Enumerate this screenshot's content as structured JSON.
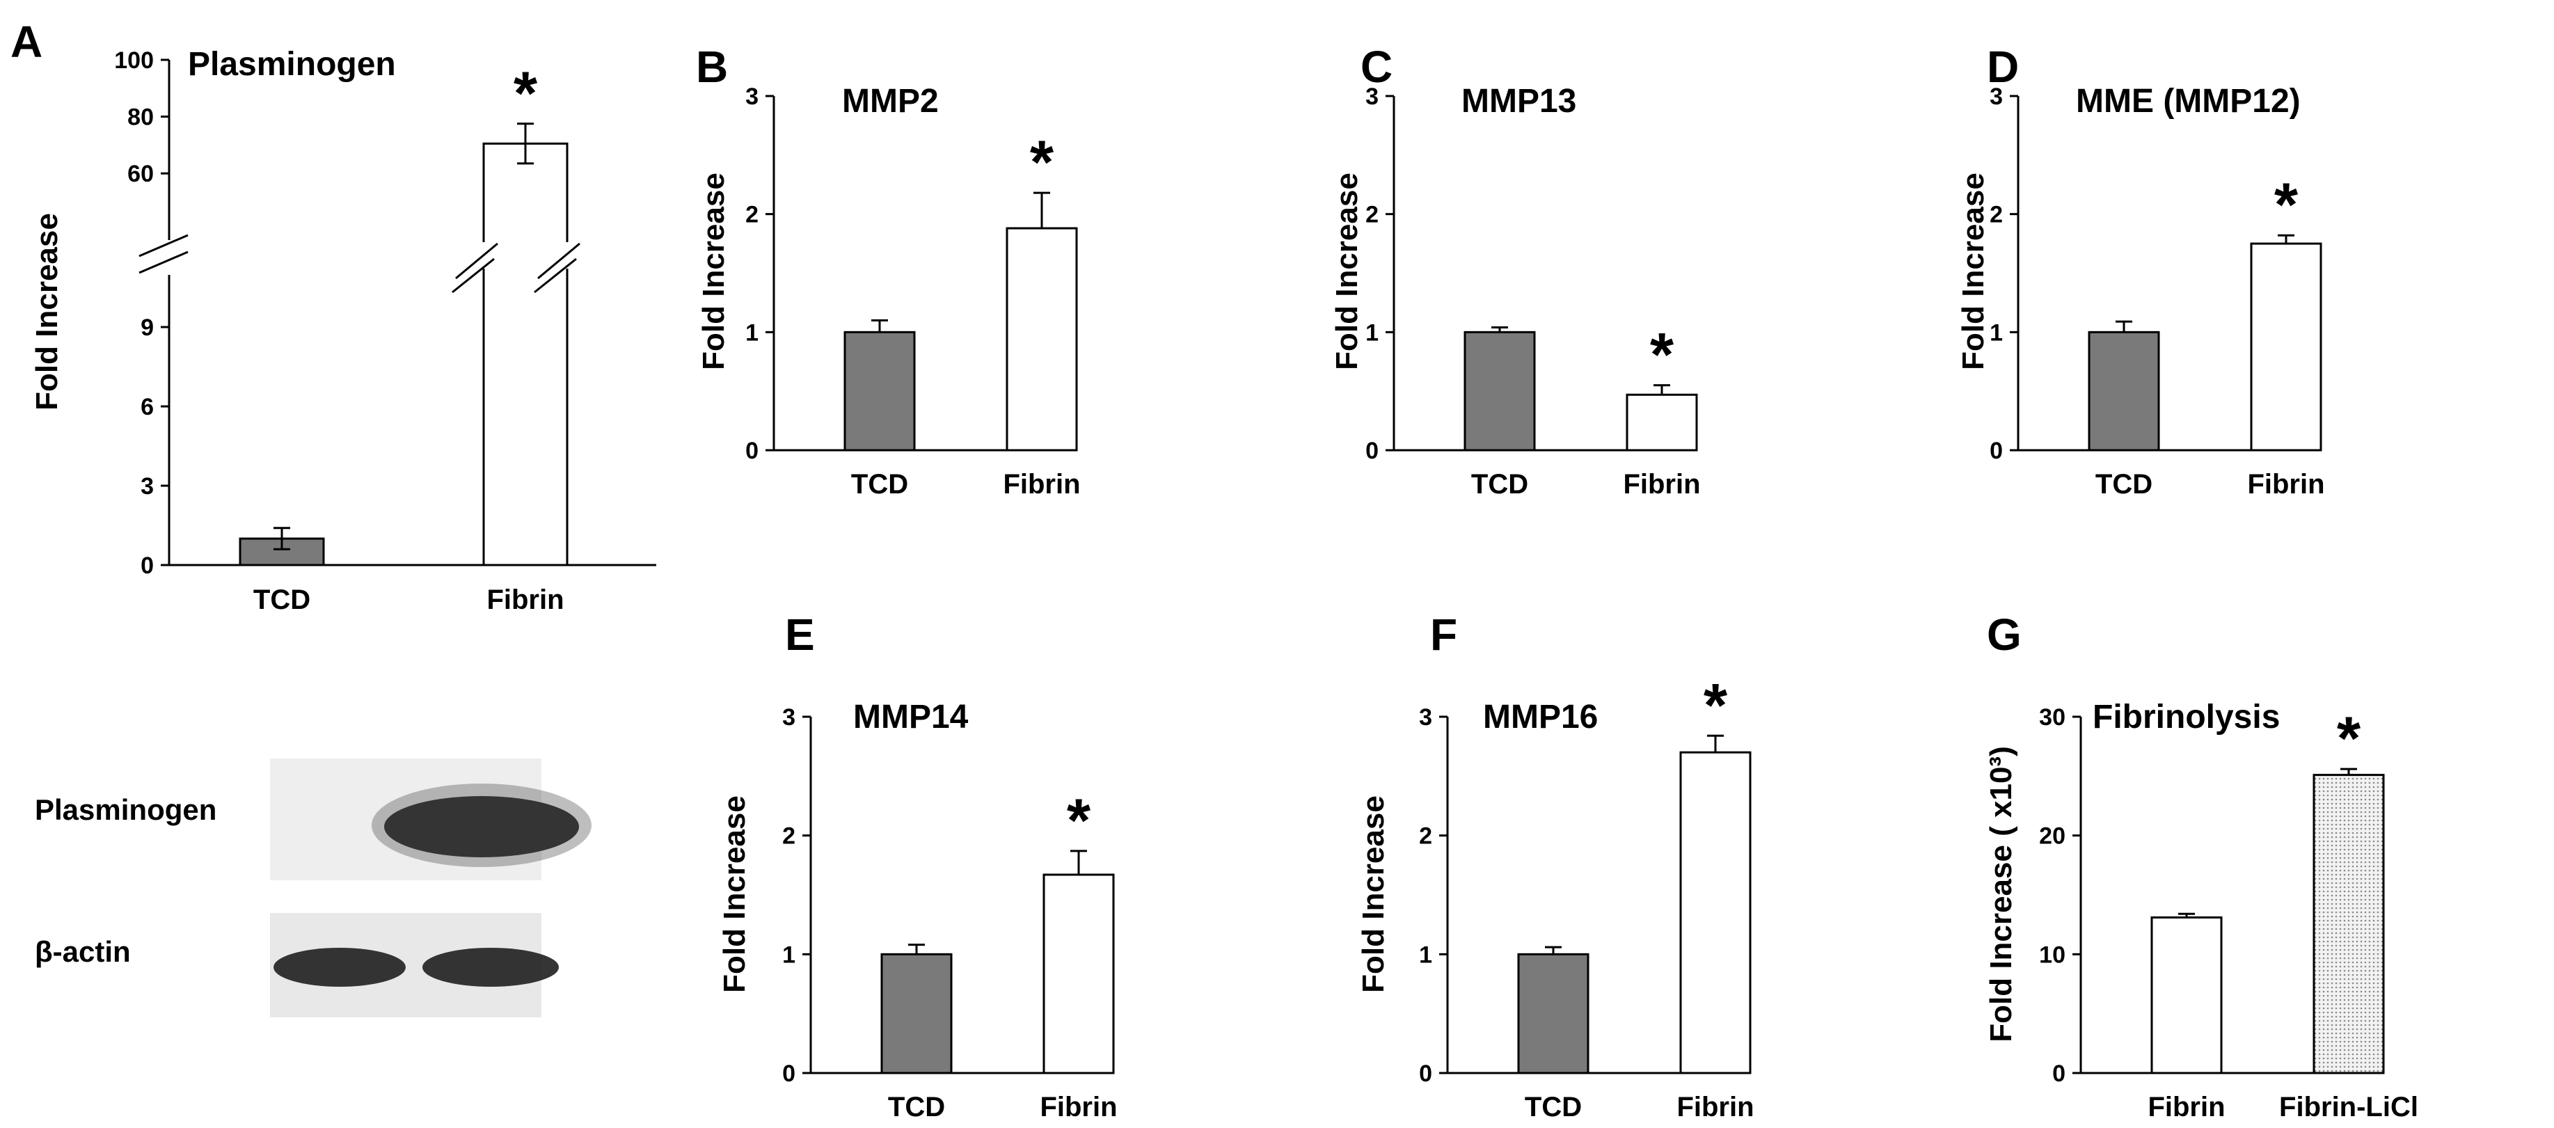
{
  "figure": {
    "panel_letters": [
      "A",
      "B",
      "C",
      "D",
      "E",
      "F",
      "G"
    ]
  },
  "blot": {
    "rows": [
      {
        "label": "Plasminogen",
        "lanes": [
          "none",
          "strong"
        ]
      },
      {
        "label": "β-actin",
        "lanes": [
          "strong",
          "strong"
        ]
      }
    ]
  },
  "colors": {
    "tcd_bar": "#7a7a7a",
    "fibrin_bar": "#ffffff",
    "licl_bar": "#e6e6e6",
    "axis": "#000000"
  },
  "chart_data": [
    {
      "panel": "A",
      "type": "bar",
      "title": "Plasminogen",
      "ylabel": "Fold Increase",
      "xlabel": "",
      "categories": [
        "TCD",
        "Fibrin"
      ],
      "values": [
        1.0,
        70.5
      ],
      "errors": [
        0.4,
        7
      ],
      "significance": [
        "",
        "*"
      ],
      "axis_break": true,
      "lower_segment": {
        "ylim": [
          0,
          9
        ],
        "ticks": [
          "0",
          "3",
          "6",
          "9"
        ]
      },
      "upper_segment": {
        "ylim": [
          50,
          100
        ],
        "ticks": [
          "60",
          "80",
          "100"
        ]
      }
    },
    {
      "panel": "B",
      "type": "bar",
      "title": "MMP2",
      "ylabel": "Fold Increase",
      "categories": [
        "TCD",
        "Fibrin"
      ],
      "values": [
        1.0,
        1.88
      ],
      "errors": [
        0.1,
        0.3
      ],
      "significance": [
        "",
        "*"
      ],
      "ylim": [
        0,
        3
      ],
      "ticks": [
        "0",
        "1",
        "2",
        "3"
      ]
    },
    {
      "panel": "C",
      "type": "bar",
      "title": "MMP13",
      "ylabel": "Fold Increase",
      "categories": [
        "TCD",
        "Fibrin"
      ],
      "values": [
        1.0,
        0.47
      ],
      "errors": [
        0.04,
        0.08
      ],
      "significance": [
        "",
        "*"
      ],
      "ylim": [
        0,
        3
      ],
      "ticks": [
        "0",
        "1",
        "2",
        "3"
      ]
    },
    {
      "panel": "D",
      "type": "bar",
      "title": "MME (MMP12)",
      "ylabel": "Fold Increase",
      "categories": [
        "TCD",
        "Fibrin"
      ],
      "values": [
        1.0,
        1.75
      ],
      "errors": [
        0.09,
        0.07
      ],
      "significance": [
        "",
        "*"
      ],
      "ylim": [
        0,
        3
      ],
      "ticks": [
        "0",
        "1",
        "2",
        "3"
      ]
    },
    {
      "panel": "E",
      "type": "bar",
      "title": "MMP14",
      "ylabel": "Fold Increase",
      "categories": [
        "TCD",
        "Fibrin"
      ],
      "values": [
        1.0,
        1.67
      ],
      "errors": [
        0.08,
        0.2
      ],
      "significance": [
        "",
        "*"
      ],
      "ylim": [
        0,
        3
      ],
      "ticks": [
        "0",
        "1",
        "2",
        "3"
      ]
    },
    {
      "panel": "F",
      "type": "bar",
      "title": "MMP16",
      "ylabel": "Fold Increase",
      "categories": [
        "TCD",
        "Fibrin"
      ],
      "values": [
        1.0,
        2.7
      ],
      "errors": [
        0.06,
        0.14
      ],
      "significance": [
        "",
        "*"
      ],
      "ylim": [
        0,
        3
      ],
      "ticks": [
        "0",
        "1",
        "2",
        "3"
      ]
    },
    {
      "panel": "G",
      "type": "bar",
      "title": "Fibrinolysis",
      "ylabel": "Fold Increase ( x10³)",
      "categories": [
        "Fibrin",
        "Fibrin-LiCl"
      ],
      "values": [
        13.1,
        25.1
      ],
      "errors": [
        0.3,
        0.5
      ],
      "significance": [
        "",
        "*"
      ],
      "ylim": [
        0,
        30
      ],
      "ticks": [
        "0",
        "10",
        "20",
        "30"
      ]
    }
  ]
}
